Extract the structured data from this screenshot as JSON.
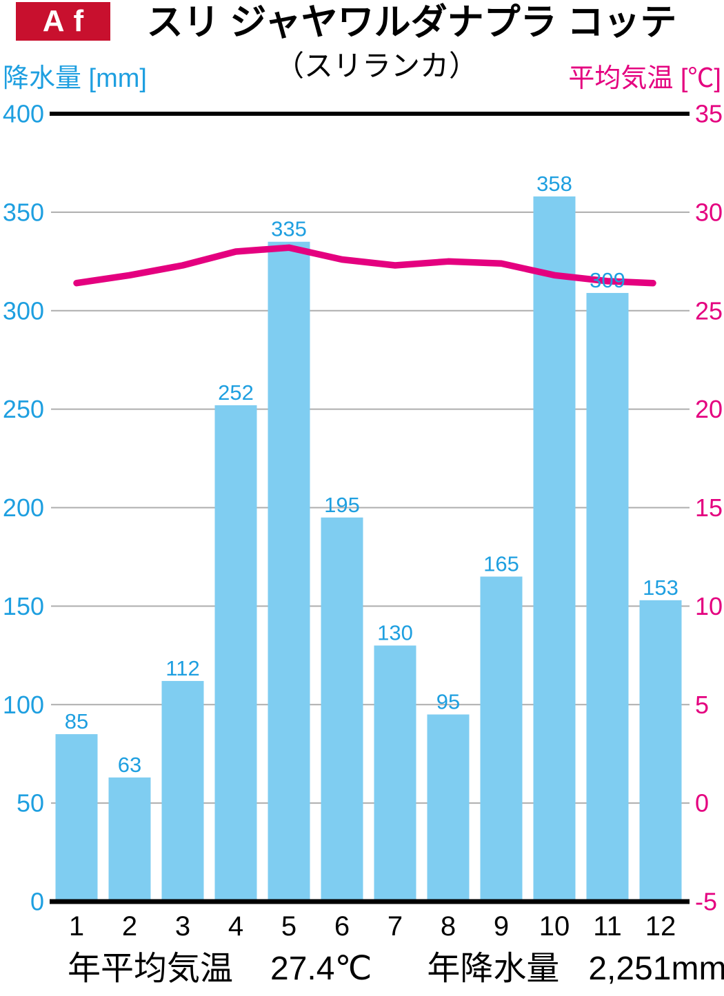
{
  "badge": {
    "climate_class": "Af"
  },
  "header": {
    "title": "スリ ジャヤワルダナプラ コッテ",
    "subtitle": "（スリランカ）"
  },
  "colors": {
    "badge_red": "#C8102E",
    "precip_text": "#1E9FE0",
    "bar_fill": "#7FCDF1",
    "temp_magenta": "#E4007F",
    "gridline_gray": "#ADADAD",
    "axis_black": "#000000"
  },
  "chart_data": {
    "type": "bar+line",
    "title": "スリ ジャヤワルダナプラ コッテ",
    "subtitle": "（スリランカ）",
    "climate_class": "Af",
    "categories": [
      1,
      2,
      3,
      4,
      5,
      6,
      7,
      8,
      9,
      10,
      11,
      12
    ],
    "ylabel_left": "降水量 [mm]",
    "ylabel_right": "平均気温 [℃]",
    "ylim_left": [
      0,
      400
    ],
    "yticks_left": [
      400,
      350,
      300,
      250,
      200,
      150,
      100,
      50,
      0
    ],
    "ylim_right": [
      -5,
      35
    ],
    "yticks_right": [
      35,
      30,
      25,
      20,
      15,
      10,
      5,
      0,
      -5
    ],
    "grid": true,
    "series": [
      {
        "name": "降水量",
        "type": "bar",
        "unit": "mm",
        "axis": "left",
        "color": "#7FCDF1",
        "label_color": "#1E9FE0",
        "values": [
          85,
          63,
          112,
          252,
          335,
          195,
          130,
          95,
          165,
          358,
          309,
          153
        ]
      },
      {
        "name": "平均気温",
        "type": "line",
        "unit": "℃",
        "axis": "right",
        "color": "#E4007F",
        "values": [
          26.4,
          26.8,
          27.3,
          28.0,
          28.2,
          27.6,
          27.3,
          27.5,
          27.4,
          26.8,
          26.5,
          26.4
        ]
      }
    ],
    "annotations": {
      "annual_mean_temp": "27.4℃",
      "annual_precip": "2,251mm"
    }
  },
  "footer": {
    "items": [
      {
        "label": "年平均気温",
        "value": "27.4℃"
      },
      {
        "label": "年降水量",
        "value": "2,251mm"
      }
    ]
  }
}
